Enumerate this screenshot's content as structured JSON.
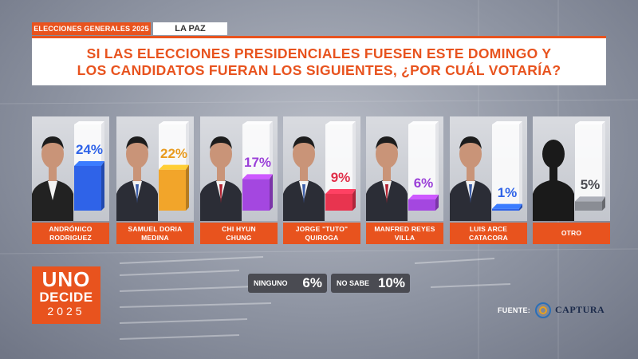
{
  "header": {
    "election_tag": "ELECCIONES GENERALES 2025",
    "region_tag": "LA PAZ",
    "question": "SI LAS ELECCIONES PRESIDENCIALES FUESEN ESTE DOMINGO Y\nLOS CANDIDATOS FUERAN LOS SIGUIENTES, ¿POR CUÁL VOTARÍA?"
  },
  "chart_data": {
    "type": "bar",
    "title": "SI LAS ELECCIONES PRESIDENCIALES FUESEN ESTE DOMINGO Y LOS CANDIDATOS FUERAN LOS SIGUIENTES, ¿POR CUÁL VOTARÍA?",
    "categories": [
      "ANDRÓNICO RODRIGUEZ",
      "SAMUEL DORIA MEDINA",
      "CHI HYUN CHUNG",
      "JORGE \"TUTO\" QUIROGA",
      "MANFRED REYES VILLA",
      "LUIS ARCE CATACORA",
      "OTRO"
    ],
    "values": [
      24,
      22,
      17,
      9,
      6,
      1,
      5
    ],
    "value_labels": [
      "24%",
      "22%",
      "17%",
      "9%",
      "6%",
      "1%",
      "5%"
    ],
    "name_lines": [
      "ANDRÓNICO\nRODRIGUEZ",
      "SAMUEL DORIA\nMEDINA",
      "CHI HYUN\nCHUNG",
      "JORGE \"TUTO\"\nQUIROGA",
      "MANFRED REYES\nVILLA",
      "LUIS ARCE\nCATACORA",
      "OTRO"
    ],
    "colors": [
      "#2f63e8",
      "#f2a52a",
      "#a447e0",
      "#e8344f",
      "#a447e0",
      "#2f63e8",
      "#8a8d94"
    ],
    "label_colors": [
      "#2f63e8",
      "#e89a1e",
      "#9a3fd8",
      "#e02d48",
      "#9a3fd8",
      "#2f63e8",
      "#4a4b52"
    ],
    "ylim": [
      0,
      30
    ],
    "unit": "%"
  },
  "other_results": [
    {
      "label": "NINGUNO",
      "value": "6%"
    },
    {
      "label": "NO SABE",
      "value": "10%"
    }
  ],
  "logo": {
    "line1": "UNO",
    "line2": "DECIDE",
    "line3": "2025"
  },
  "source": {
    "label": "FUENTE:",
    "name": "CAPTURA"
  },
  "colors": {
    "accent": "#e8531e",
    "pill": "#4a4b52"
  }
}
